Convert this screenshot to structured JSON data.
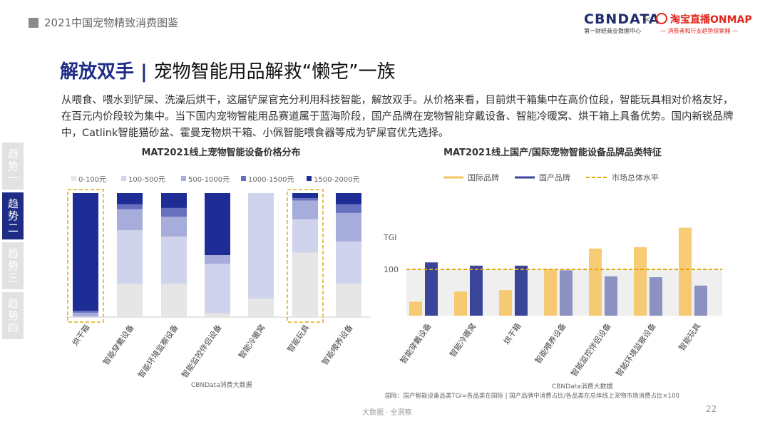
{
  "header": {
    "title": "2021中国宠物精致消费图鉴"
  },
  "brands": {
    "cbndata": "CBNDATA",
    "cbndata_sub": "第一财经商业数据中心",
    "cross": "×",
    "taobao": "淘宝直播ONMAP",
    "taobao_sub": "— 消费者和行业趋势探索器 —"
  },
  "title": {
    "main": "解放双手",
    "separator": " | ",
    "sub": "宠物智能用品解救“懒宅”一族"
  },
  "body": "从喂食、喂水到铲屎、洗澡后烘干，这届铲屎官充分利用科技智能，解放双手。从价格来看，目前烘干箱集中在高价位段，智能玩具相对价格友好，在百元内价段较为集中。当下国内宠物智能用品赛道属于蓝海阶段，国产品牌在宠物智能穿戴设备、智能冷暖窝、烘干箱上具备优势。国内新锐品牌中，Catlink智能猫砂盆、霍曼宠物烘干箱、小佩智能喂食器等成为铲屎官优先选择。",
  "side_tabs": [
    "趋势一",
    "趋势二",
    "趋势三",
    "趋势四"
  ],
  "colors": {
    "tier1": "#e6e6e6",
    "tier2": "#d0d3ec",
    "tier3": "#a7addb",
    "tier4": "#6770bf",
    "tier5": "#1e2c96",
    "intl": "#f7c35c",
    "domestic": "#3a4599",
    "avg": "#e0a800",
    "highlight": "#e8c14a"
  },
  "chart_data": [
    {
      "type": "bar",
      "stacked": true,
      "percent": true,
      "title": "MAT2021线上宠物智能设备价格分布",
      "categories": [
        "烘干箱",
        "智能穿戴设备",
        "智能环境监察设备",
        "智能监控伴侣设备",
        "智能冷暖窝",
        "智能玩具",
        "智能喂养设备"
      ],
      "series": [
        {
          "name": "0-100元",
          "values": [
            0,
            27,
            27,
            3,
            15,
            52,
            27
          ]
        },
        {
          "name": "100-500元",
          "values": [
            0.5,
            43,
            38,
            40,
            85,
            27,
            34
          ]
        },
        {
          "name": "500-1000元",
          "values": [
            3,
            17,
            16,
            7,
            0,
            15,
            23
          ]
        },
        {
          "name": "1000-1500元",
          "values": [
            1.5,
            4,
            7,
            0,
            0,
            2,
            7
          ]
        },
        {
          "name": "1500-2000元",
          "values": [
            95,
            9,
            12,
            50,
            0,
            4,
            9
          ]
        }
      ],
      "highlighted": [
        "烘干箱",
        "智能玩具"
      ],
      "legend_position": "top",
      "source": "CBNData消费大数据"
    },
    {
      "type": "bar",
      "title": "MAT2021线上国产/国际宠物智能设备品牌品类特征",
      "categories": [
        "智能穿戴设备",
        "智能冷暖窝",
        "烘干箱",
        "智能喂养设备",
        "智能监控伴侣设备",
        "智能环境监察设备",
        "智能玩具"
      ],
      "series": [
        {
          "name": "国际品牌",
          "values": [
            30,
            52,
            55,
            100,
            145,
            148,
            190
          ]
        },
        {
          "name": "国产品牌",
          "values": [
            115,
            108,
            108,
            98,
            85,
            83,
            65
          ]
        }
      ],
      "reference_line": {
        "name": "市场总体水平",
        "value": 100
      },
      "ylabel": "TGI",
      "y_ticks": [
        "100"
      ],
      "ylim": [
        0,
        220
      ],
      "legend_position": "top",
      "source": "CBNData消费大数据",
      "note": "国际：国产智能设备品类TGI=各品类在国际 | 国产品牌中消费占比/各品类在总体线上宠物市场消费占比×100"
    }
  ],
  "footer": {
    "center": "大数据 · 全洞察",
    "page": "22"
  }
}
